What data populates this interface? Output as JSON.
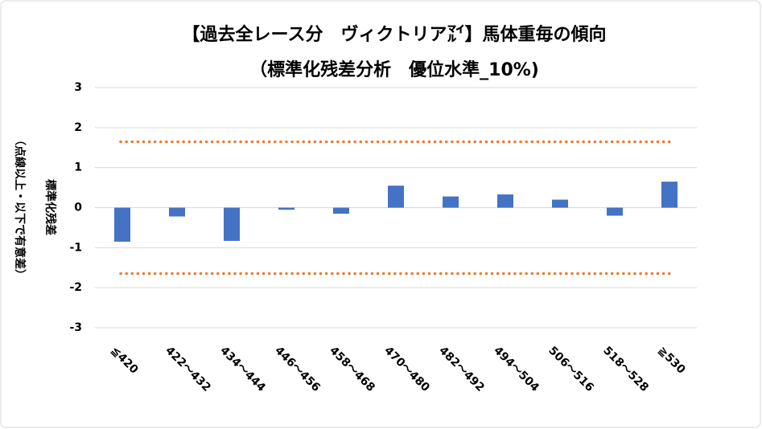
{
  "chart_data": {
    "type": "bar",
    "title": "【過去全レース分　ヴィクトリア㍄】馬体重毎の傾向",
    "subtitle": "（標準化残差分析　優位水準_10%)",
    "y_label": "標準化残差",
    "y_label_note": "（点線以上・以下で有意差）",
    "categories": [
      "≦420",
      "422～432",
      "434～444",
      "446～456",
      "458～468",
      "470～480",
      "482～492",
      "494～504",
      "506～516",
      "518～528",
      "≧530"
    ],
    "values": [
      -0.85,
      -0.22,
      -0.83,
      -0.05,
      -0.15,
      0.55,
      0.28,
      0.33,
      0.2,
      -0.2,
      0.65
    ],
    "color": "#4472c4",
    "ylim": [
      -3,
      3
    ],
    "yticks": [
      -3,
      -2,
      -1,
      0,
      1,
      2,
      3
    ],
    "grid": true,
    "threshold_lines": [
      1.645,
      -1.645
    ],
    "threshold_color": "#ed7d31"
  }
}
